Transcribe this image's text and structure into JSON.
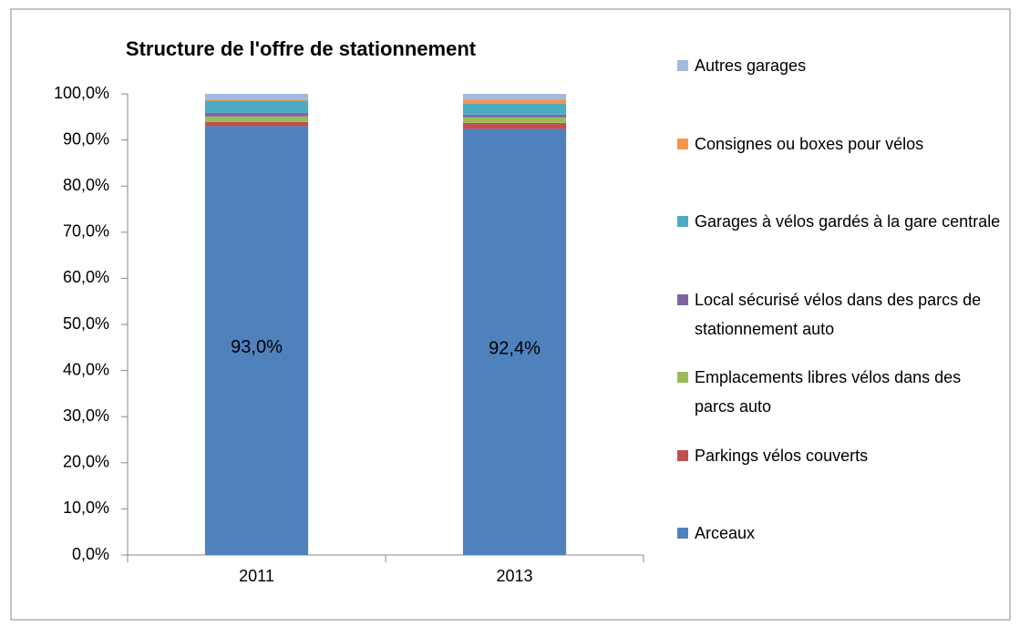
{
  "chart_data": {
    "type": "stacked_bar",
    "title": "Structure de l'offre de stationnement",
    "categories": [
      "2011",
      "2013"
    ],
    "series": [
      {
        "name": "Arceaux",
        "color": "#4f81bd",
        "values": [
          93.0,
          92.4
        ],
        "value_labels": [
          "93,0%",
          "92,4%"
        ]
      },
      {
        "name": "Parkings vélos couverts",
        "color": "#c0504d",
        "values": [
          0.9,
          1.3
        ]
      },
      {
        "name": "Emplacements libres vélos dans des parcs auto",
        "color": "#9bbb59",
        "values": [
          1.2,
          1.2
        ]
      },
      {
        "name": "Local sécurisé vélos dans des parcs de stationnement auto",
        "color": "#8064a2",
        "values": [
          0.8,
          0.6
        ]
      },
      {
        "name": "Garages à vélos gardés à la gare centrale",
        "color": "#4bacc6",
        "values": [
          2.6,
          2.4
        ]
      },
      {
        "name": "Consignes ou boxes pour vélos",
        "color": "#f79646",
        "values": [
          0.3,
          0.8
        ]
      },
      {
        "name": "Autres garages",
        "color": "#a5b9dd",
        "values": [
          1.2,
          1.3
        ]
      }
    ],
    "ylim": [
      0,
      100
    ],
    "yticks": [
      {
        "value": 0,
        "label": "0,0%"
      },
      {
        "value": 10,
        "label": "10,0%"
      },
      {
        "value": 20,
        "label": "20,0%"
      },
      {
        "value": 30,
        "label": "30,0%"
      },
      {
        "value": 40,
        "label": "40,0%"
      },
      {
        "value": 50,
        "label": "50,0%"
      },
      {
        "value": 60,
        "label": "60,0%"
      },
      {
        "value": 70,
        "label": "70,0%"
      },
      {
        "value": 80,
        "label": "80,0%"
      },
      {
        "value": 90,
        "label": "90,0%"
      },
      {
        "value": 100,
        "label": "100,0%"
      }
    ],
    "legend": "right"
  }
}
